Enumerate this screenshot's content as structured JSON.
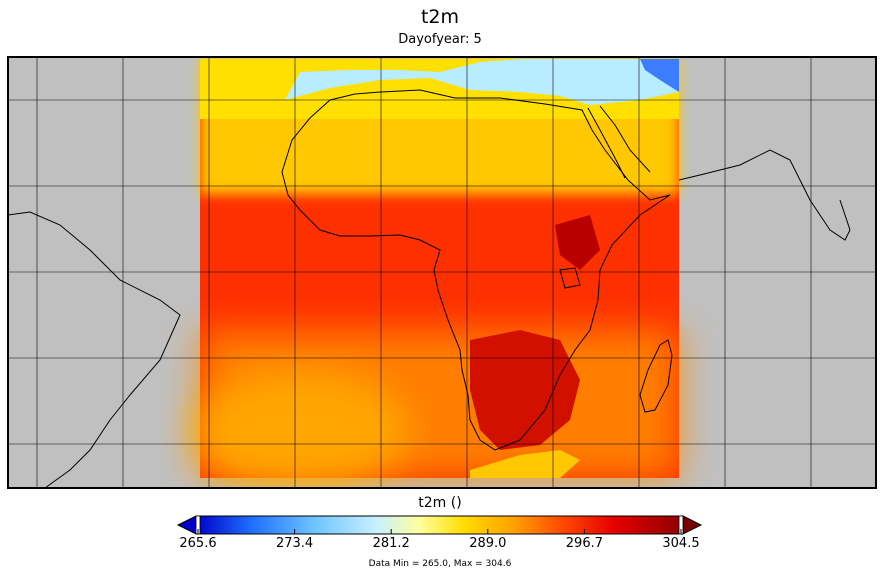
{
  "title": "t2m",
  "subtitle": "Dayofyear: 5",
  "variable": "t2m",
  "colorbar": {
    "title": "t2m ()",
    "ticks": [
      "265.6",
      "273.4",
      "281.2",
      "289.0",
      "296.7",
      "304.5"
    ],
    "stops": [
      {
        "value": 265.6,
        "color": "#0000c8"
      },
      {
        "value": 270.0,
        "color": "#1e6eff"
      },
      {
        "value": 275.0,
        "color": "#6ec3ff"
      },
      {
        "value": 280.0,
        "color": "#c8f0ff"
      },
      {
        "value": 283.5,
        "color": "#ffff9b"
      },
      {
        "value": 287.0,
        "color": "#ffdc00"
      },
      {
        "value": 291.0,
        "color": "#ffa000"
      },
      {
        "value": 295.0,
        "color": "#ff4600"
      },
      {
        "value": 299.0,
        "color": "#e60000"
      },
      {
        "value": 304.5,
        "color": "#8c0000"
      }
    ],
    "under_color": "#0000c8",
    "over_color": "#7a0000"
  },
  "data_range_label": "Data Min = 265.0, Max = 304.6",
  "colors": {
    "ocean_no_data": "#c0c0c0",
    "frame": "#000000",
    "grid": "#000000"
  },
  "map": {
    "gridlines": true
  }
}
